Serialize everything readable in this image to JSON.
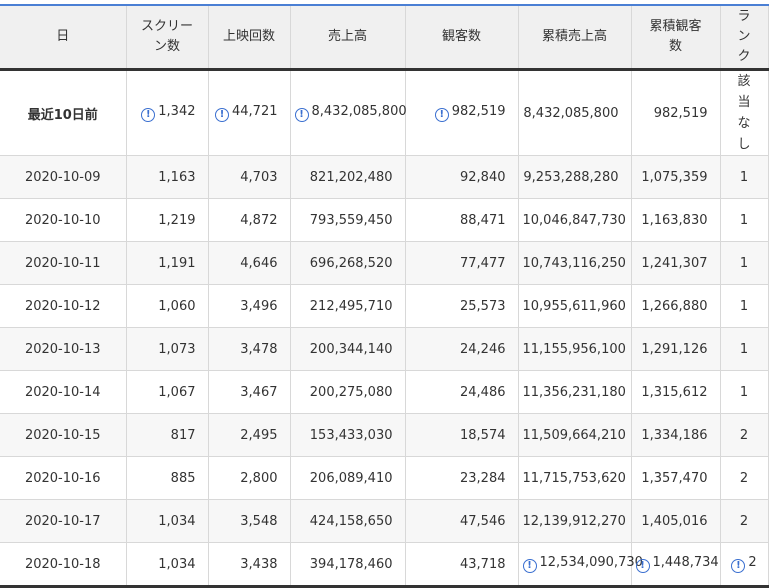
{
  "headers": [
    "日",
    "スクリーン数",
    "上映回数",
    "売上高",
    "観客数",
    "累積売上高",
    "累積観客数",
    "ランク"
  ],
  "headers_display": [
    "日",
    "スクリー\nン数",
    "上映回数",
    "売上高",
    "観客数",
    "累積売上高",
    "累積観客\n数",
    "ラ\nン\nク"
  ],
  "info_icon": "exclamation-circle-icon",
  "accent_color": "#4a7fd4",
  "first_row": {
    "date": "最近10日前",
    "screens": "1,342",
    "shows": "44,721",
    "sales": "8,432,085,800",
    "audience": "982,519",
    "cum_sales": "8,432,085,800",
    "cum_audience": "982,519",
    "rank": "該当なし"
  },
  "rows": [
    {
      "date": "2020-10-09",
      "screens": "1,163",
      "shows": "4,703",
      "sales": "821,202,480",
      "audience": "92,840",
      "cum_sales": "9,253,288,280",
      "cum_audience": "1,075,359",
      "rank": "1"
    },
    {
      "date": "2020-10-10",
      "screens": "1,219",
      "shows": "4,872",
      "sales": "793,559,450",
      "audience": "88,471",
      "cum_sales": "10,046,847,730",
      "cum_audience": "1,163,830",
      "rank": "1"
    },
    {
      "date": "2020-10-11",
      "screens": "1,191",
      "shows": "4,646",
      "sales": "696,268,520",
      "audience": "77,477",
      "cum_sales": "10,743,116,250",
      "cum_audience": "1,241,307",
      "rank": "1"
    },
    {
      "date": "2020-10-12",
      "screens": "1,060",
      "shows": "3,496",
      "sales": "212,495,710",
      "audience": "25,573",
      "cum_sales": "10,955,611,960",
      "cum_audience": "1,266,880",
      "rank": "1"
    },
    {
      "date": "2020-10-13",
      "screens": "1,073",
      "shows": "3,478",
      "sales": "200,344,140",
      "audience": "24,246",
      "cum_sales": "11,155,956,100",
      "cum_audience": "1,291,126",
      "rank": "1"
    },
    {
      "date": "2020-10-14",
      "screens": "1,067",
      "shows": "3,467",
      "sales": "200,275,080",
      "audience": "24,486",
      "cum_sales": "11,356,231,180",
      "cum_audience": "1,315,612",
      "rank": "1"
    },
    {
      "date": "2020-10-15",
      "screens": "817",
      "shows": "2,495",
      "sales": "153,433,030",
      "audience": "18,574",
      "cum_sales": "11,509,664,210",
      "cum_audience": "1,334,186",
      "rank": "2"
    },
    {
      "date": "2020-10-16",
      "screens": "885",
      "shows": "2,800",
      "sales": "206,089,410",
      "audience": "23,284",
      "cum_sales": "11,715,753,620",
      "cum_audience": "1,357,470",
      "rank": "2"
    },
    {
      "date": "2020-10-17",
      "screens": "1,034",
      "shows": "3,548",
      "sales": "424,158,650",
      "audience": "47,546",
      "cum_sales": "12,139,912,270",
      "cum_audience": "1,405,016",
      "rank": "2"
    },
    {
      "date": "2020-10-18",
      "screens": "1,034",
      "shows": "3,438",
      "sales": "394,178,460",
      "audience": "43,718",
      "cum_sales": "12,534,090,730",
      "cum_audience": "1,448,734",
      "rank": "2"
    }
  ]
}
